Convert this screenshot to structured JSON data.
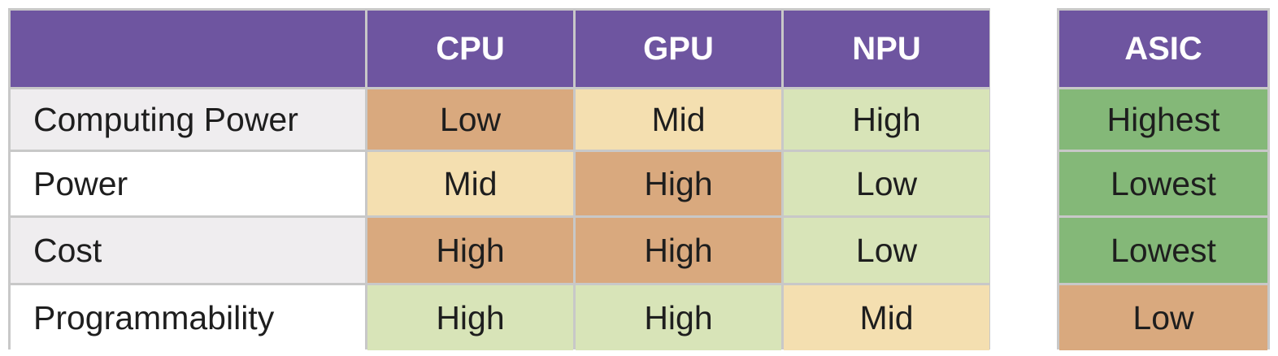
{
  "columns": [
    "",
    "CPU",
    "GPU",
    "NPU"
  ],
  "asic_header": "ASIC",
  "rows": [
    {
      "label": "Computing Power",
      "cpu": "Low",
      "gpu": "Mid",
      "npu": "High",
      "asic": "Highest"
    },
    {
      "label": "Power",
      "cpu": "Mid",
      "gpu": "High",
      "npu": "Low",
      "asic": "Lowest"
    },
    {
      "label": "Cost",
      "cpu": "High",
      "gpu": "High",
      "npu": "Low",
      "asic": "Lowest"
    },
    {
      "label": "Programmability",
      "cpu": "High",
      "gpu": "High",
      "npu": "Mid",
      "asic": "Low"
    }
  ],
  "colors": {
    "header": "#6e55a0",
    "unfavorable": "#d9a97e",
    "moderate": "#f4dfb0",
    "favorable": "#d8e4b8",
    "most_favorable": "#84b878",
    "row_label_shaded": "#efedef",
    "row_label_plain": "#ffffff"
  }
}
